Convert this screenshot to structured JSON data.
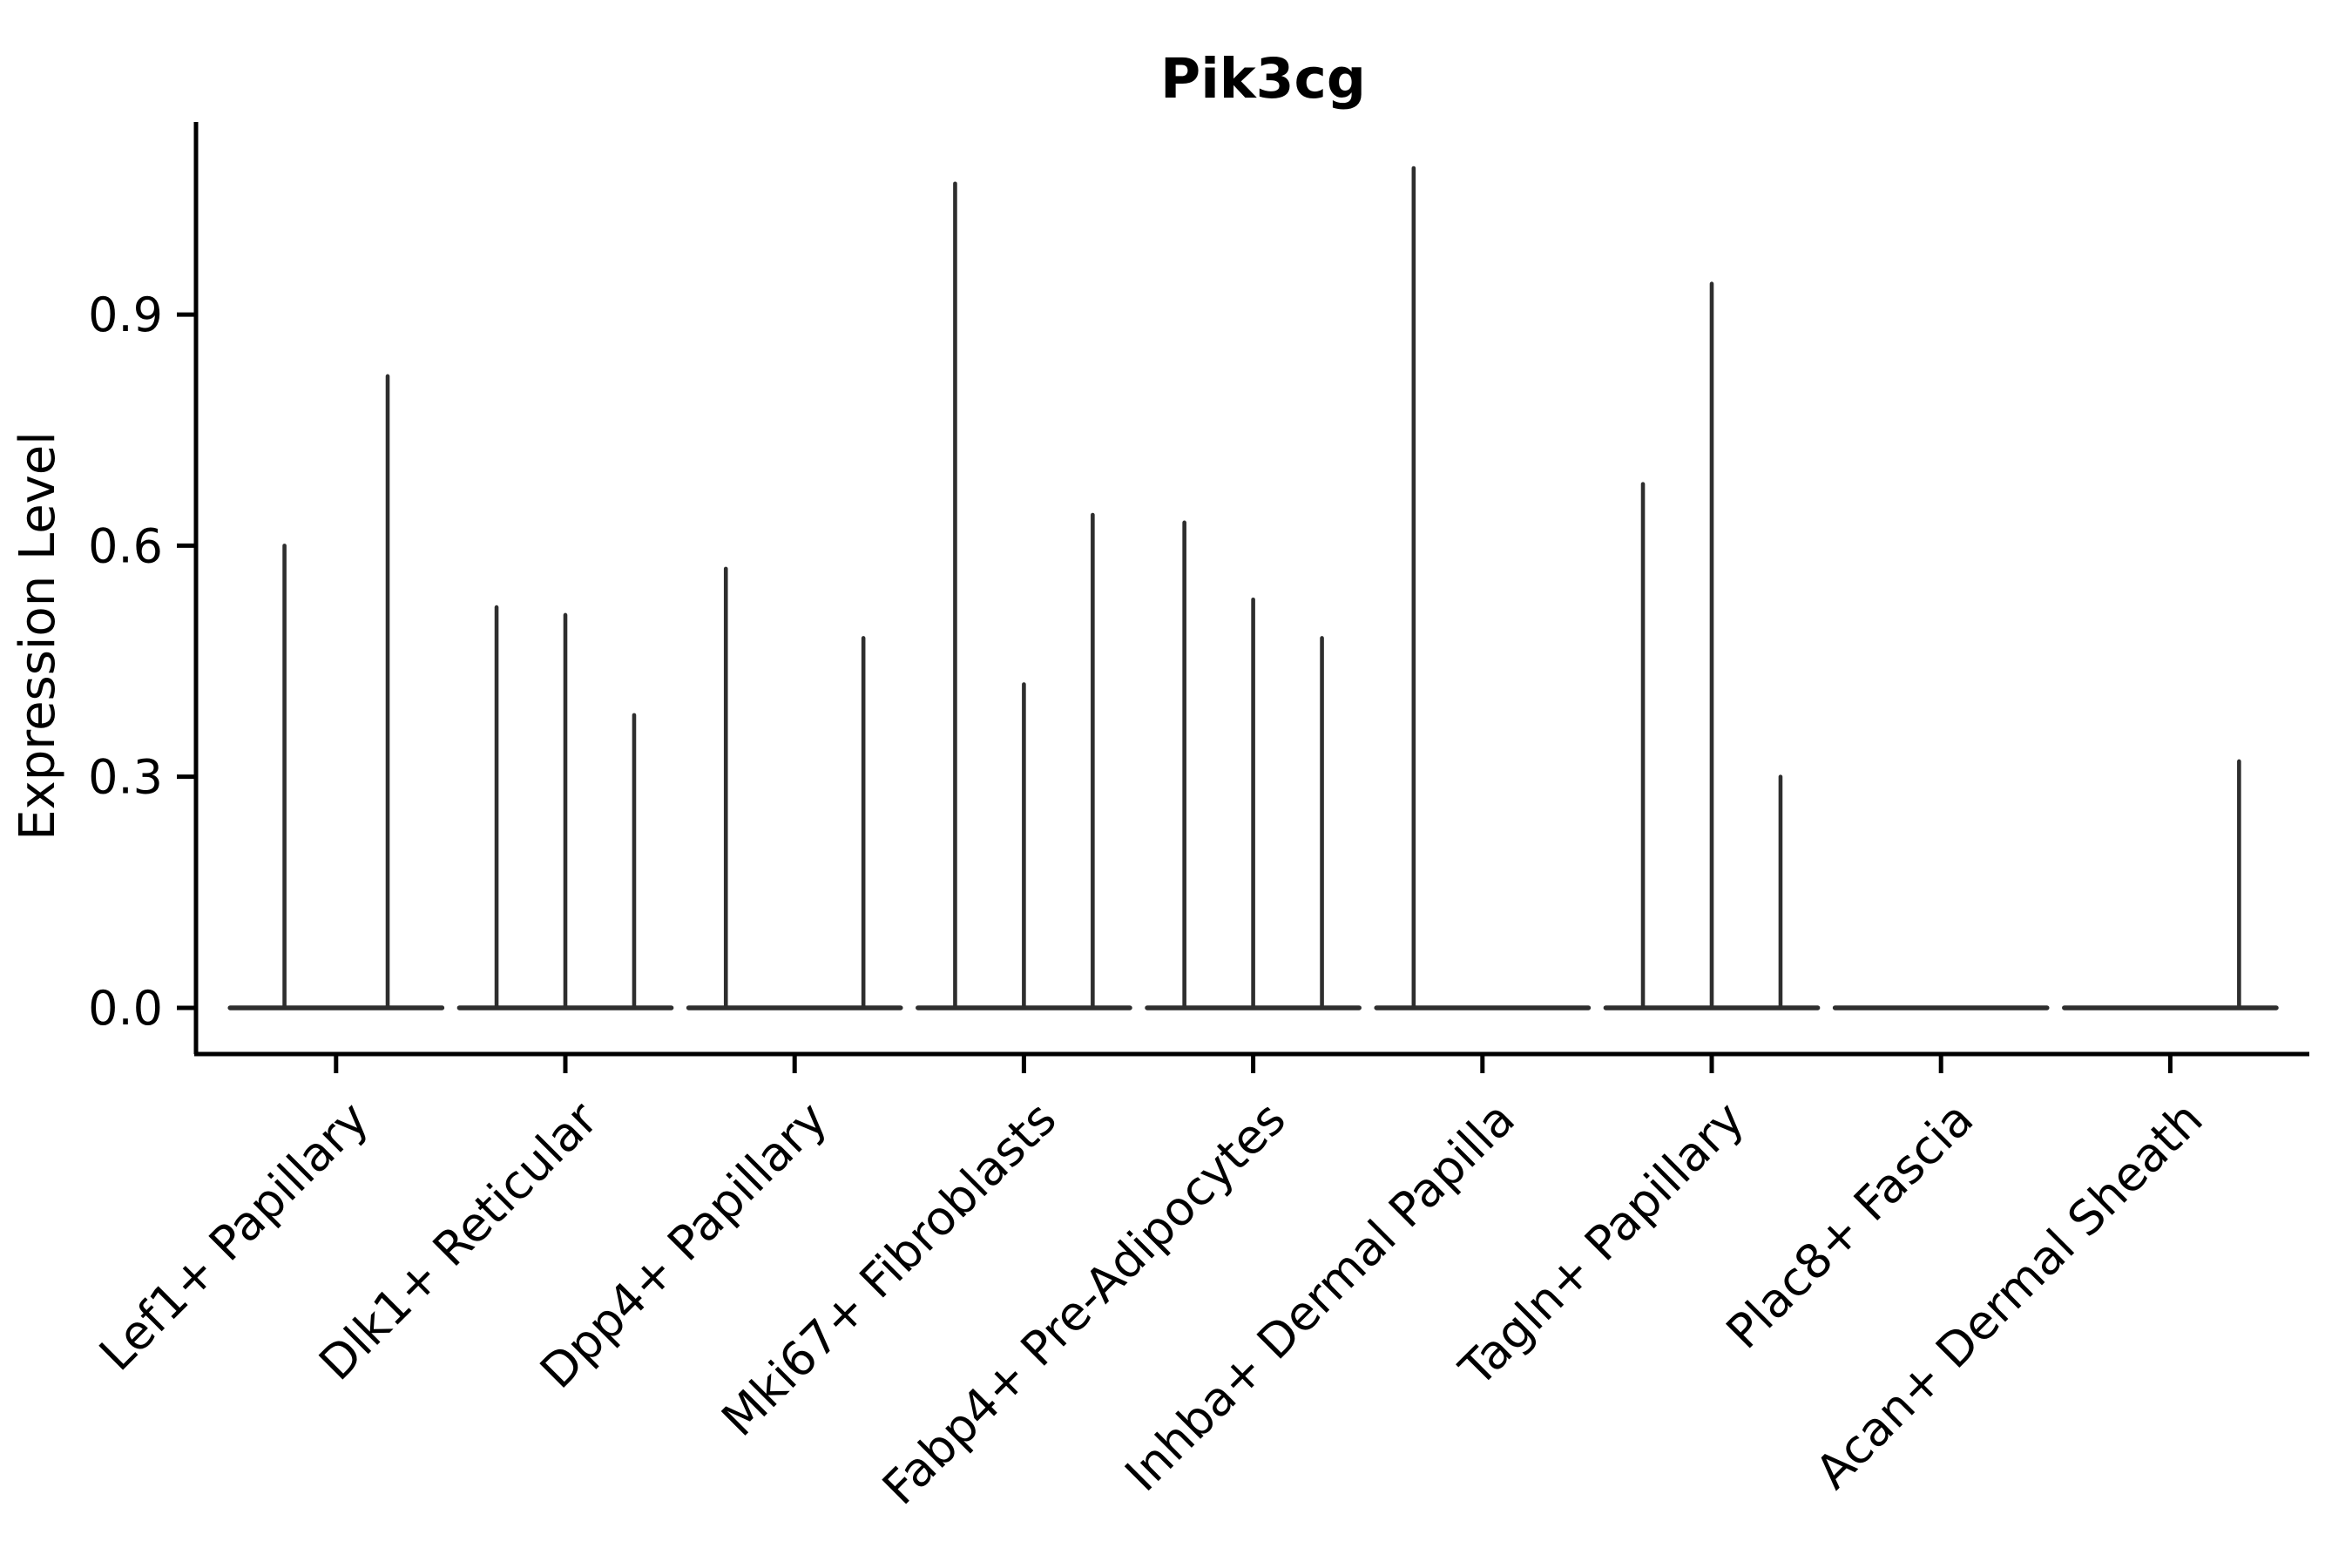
{
  "title": "Pik3cg",
  "ylabel": "Expression Level",
  "chart_data": {
    "type": "violin",
    "title": "Pik3cg",
    "xlabel": "",
    "ylabel": "Expression Level",
    "ylim": [
      -0.06,
      1.15
    ],
    "yticks": [
      0.0,
      0.3,
      0.6,
      0.9
    ],
    "ytick_labels": [
      "0.0",
      "0.3",
      "0.6",
      "0.9"
    ],
    "grid": false,
    "legend": "none",
    "violin_color": "#2e2e2e",
    "axis_color": "#000000",
    "background_color": "#ffffff",
    "x_tick_label_rotation_deg": 45,
    "violin_group_halfwidth": 0.462,
    "categories": [
      "Lef1+ Papillary",
      "Dlk1+ Reticular",
      "Dpp4+ Papillary",
      "Mki67+ Fibroblasts",
      "Fabp4+ Pre-Adipocytes",
      "Inhba+ Dermal Papilla",
      "Tagln+ Papillary",
      "Plac8+ Fascia",
      "Acan+ Dermal Sheath"
    ],
    "groups": [
      {
        "label": "Lef1+ Papillary",
        "baseline_value": 0.0,
        "spikes": [
          {
            "offset": -0.225,
            "max": 0.6
          },
          {
            "offset": 0.225,
            "max": 0.82
          }
        ]
      },
      {
        "label": "Dlk1+ Reticular",
        "baseline_value": 0.0,
        "spikes": [
          {
            "offset": -0.3,
            "max": 0.52
          },
          {
            "offset": 0.0,
            "max": 0.51
          },
          {
            "offset": 0.3,
            "max": 0.38
          }
        ]
      },
      {
        "label": "Dpp4+ Papillary",
        "baseline_value": 0.0,
        "spikes": [
          {
            "offset": -0.3,
            "max": 0.57
          },
          {
            "offset": 0.3,
            "max": 0.48
          }
        ]
      },
      {
        "label": "Mki67+ Fibroblasts",
        "baseline_value": 0.0,
        "spikes": [
          {
            "offset": -0.3,
            "max": 1.07
          },
          {
            "offset": 0.0,
            "max": 0.42
          },
          {
            "offset": 0.3,
            "max": 0.64
          }
        ]
      },
      {
        "label": "Fabp4+ Pre-Adipocytes",
        "baseline_value": 0.0,
        "spikes": [
          {
            "offset": -0.3,
            "max": 0.63
          },
          {
            "offset": 0.0,
            "max": 0.53
          },
          {
            "offset": 0.3,
            "max": 0.48
          }
        ]
      },
      {
        "label": "Inhba+ Dermal Papilla",
        "baseline_value": 0.0,
        "spikes": [
          {
            "offset": -0.3,
            "max": 1.09
          }
        ]
      },
      {
        "label": "Tagln+ Papillary",
        "baseline_value": 0.0,
        "spikes": [
          {
            "offset": -0.3,
            "max": 0.68
          },
          {
            "offset": 0.0,
            "max": 0.94
          },
          {
            "offset": 0.3,
            "max": 0.3
          }
        ]
      },
      {
        "label": "Plac8+ Fascia",
        "baseline_value": 0.0,
        "spikes": []
      },
      {
        "label": "Acan+ Dermal Sheath",
        "baseline_value": 0.0,
        "spikes": [
          {
            "offset": 0.3,
            "max": 0.32
          }
        ]
      }
    ]
  }
}
